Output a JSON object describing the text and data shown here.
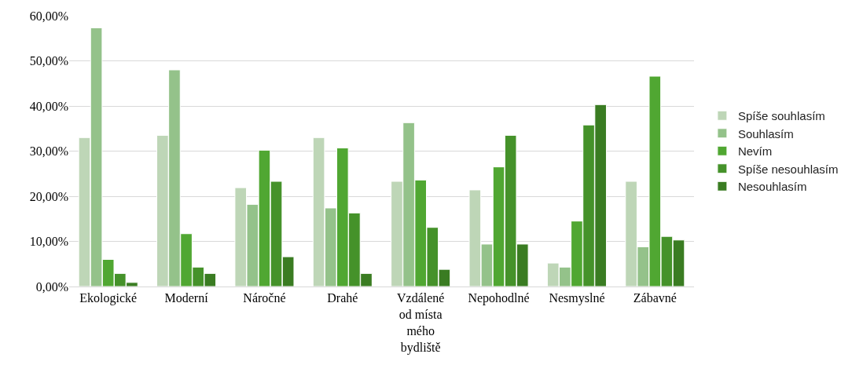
{
  "chart_data": {
    "type": "bar",
    "categories": [
      "Ekologické",
      "Moderní",
      "Náročné",
      "Drahé",
      "Vzdálené od místa mého bydliště",
      "Nepohodlné",
      "Nesmyslné",
      "Zábavné"
    ],
    "series": [
      {
        "name": "Spíše souhlasím",
        "color": "#bed6b7",
        "values": [
          33.0,
          33.5,
          21.9,
          33.0,
          23.3,
          21.4,
          5.2,
          23.3
        ]
      },
      {
        "name": "Souhlasím",
        "color": "#94c28a",
        "values": [
          57.3,
          48.0,
          18.2,
          17.4,
          36.3,
          9.4,
          4.3,
          8.8
        ]
      },
      {
        "name": "Nevím",
        "color": "#50a732",
        "values": [
          6.0,
          11.7,
          30.2,
          30.7,
          23.6,
          26.5,
          14.5,
          46.6
        ]
      },
      {
        "name": "Spíše nesouhlasím",
        "color": "#45922a",
        "values": [
          2.9,
          4.3,
          23.3,
          16.3,
          13.1,
          33.5,
          35.8,
          11.1
        ]
      },
      {
        "name": "Nesouhlasím",
        "color": "#3a7c22",
        "values": [
          0.9,
          2.9,
          6.6,
          2.9,
          3.8,
          9.4,
          40.3,
          10.3
        ]
      }
    ],
    "ylim": [
      0,
      60
    ],
    "yticks": [
      {
        "value": 0,
        "label": "0,00%"
      },
      {
        "value": 10,
        "label": "10,00%"
      },
      {
        "value": 20,
        "label": "20,00%"
      },
      {
        "value": 30,
        "label": "30,00%"
      },
      {
        "value": 40,
        "label": "40,00%"
      },
      {
        "value": 50,
        "label": "50,00%"
      },
      {
        "value": 60,
        "label": "60,00%"
      }
    ],
    "grid": "y",
    "legend": "right"
  }
}
